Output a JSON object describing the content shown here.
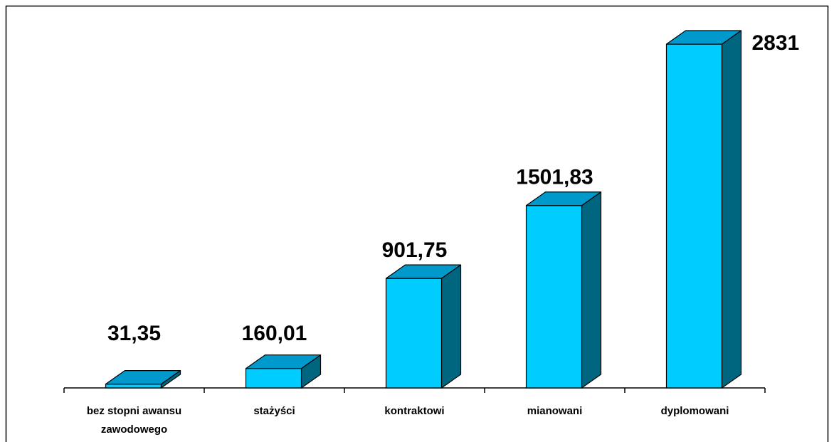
{
  "chart_data": {
    "type": "bar3d",
    "categories": [
      "bez stopni awansu zawodowego",
      "stażyści",
      "kontraktowi",
      "mianowani",
      "dyplomowani"
    ],
    "values": [
      31.35,
      160.01,
      901.75,
      1501.83,
      2831
    ],
    "value_labels": [
      "31,35",
      "160,01",
      "901,75",
      "1501,83",
      "2831"
    ],
    "color": "#00ccff"
  }
}
